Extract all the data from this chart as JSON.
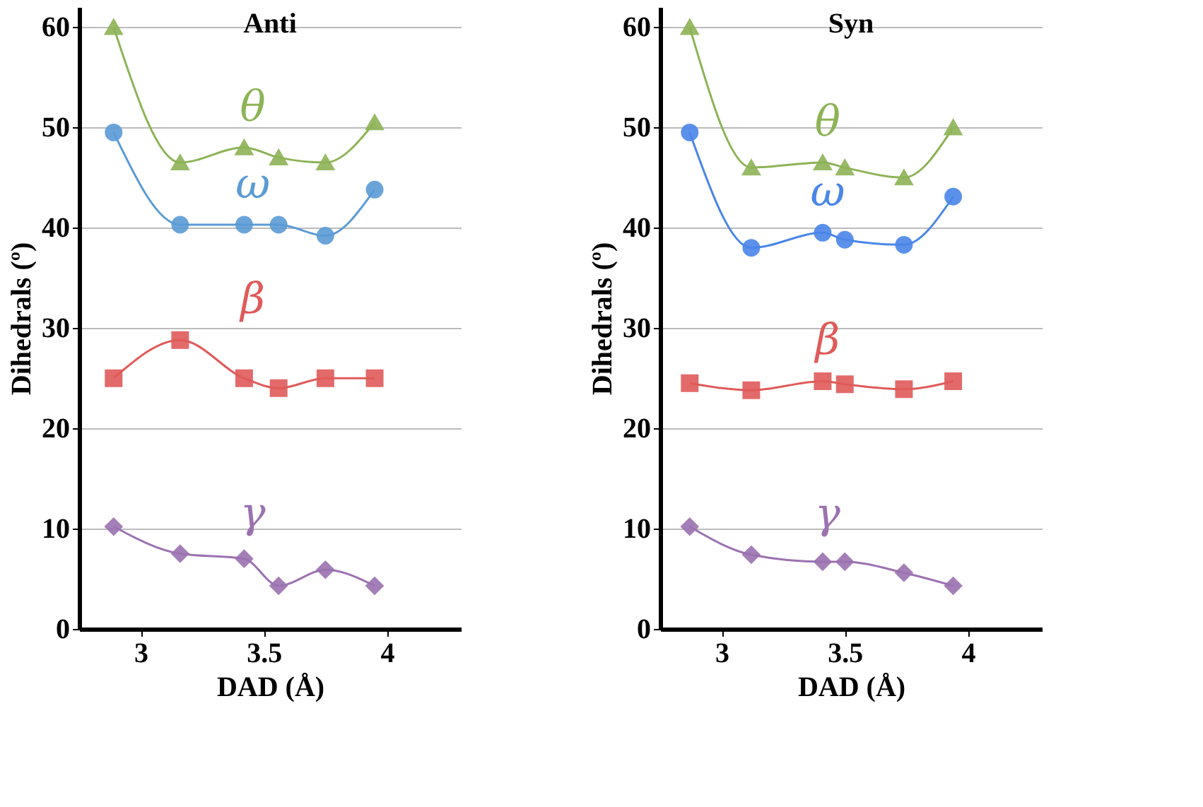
{
  "chart_data": [
    {
      "type": "line",
      "title": "Anti",
      "xlabel": "DAD (Å)",
      "ylabel": "Dihedrals (º)",
      "xlim": [
        2.75,
        4.3
      ],
      "xticks": [
        3,
        3.5,
        4
      ],
      "ylim": [
        0,
        62
      ],
      "yticks": [
        0,
        10,
        20,
        30,
        40,
        50,
        60
      ],
      "grid": "y",
      "series": [
        {
          "name": "θ",
          "color": "#8db356",
          "marker": "triangle",
          "x": [
            2.89,
            3.16,
            3.42,
            3.56,
            3.75,
            3.95
          ],
          "values": [
            60,
            46.5,
            48,
            47,
            46.5,
            50.5
          ]
        },
        {
          "name": "ω",
          "color": "#5b9bd5",
          "marker": "circle",
          "x": [
            2.89,
            3.16,
            3.42,
            3.56,
            3.75,
            3.95
          ],
          "values": [
            49.5,
            40.3,
            40.3,
            40.3,
            39.2,
            43.8
          ]
        },
        {
          "name": "β",
          "color": "#e05a5a",
          "marker": "square",
          "x": [
            2.89,
            3.16,
            3.42,
            3.56,
            3.75,
            3.95
          ],
          "values": [
            25,
            28.8,
            25,
            24,
            25,
            25
          ]
        },
        {
          "name": "γ",
          "color": "#9b72b0",
          "marker": "diamond",
          "x": [
            2.89,
            3.16,
            3.42,
            3.56,
            3.75,
            3.95
          ],
          "values": [
            10.2,
            7.5,
            7,
            4.3,
            5.9,
            4.3
          ]
        }
      ]
    },
    {
      "type": "line",
      "title": "Syn",
      "xlabel": "DAD (Å)",
      "ylabel": "Dihedrals (º)",
      "xlim": [
        2.75,
        4.3
      ],
      "xticks": [
        3,
        3.5,
        4
      ],
      "ylim": [
        0,
        62
      ],
      "yticks": [
        0,
        10,
        20,
        30,
        40,
        50,
        60
      ],
      "grid": "y",
      "series": [
        {
          "name": "θ",
          "color": "#8db356",
          "marker": "triangle",
          "x": [
            2.87,
            3.12,
            3.41,
            3.5,
            3.74,
            3.94
          ],
          "values": [
            60,
            46,
            46.5,
            46,
            45,
            50
          ]
        },
        {
          "name": "ω",
          "color": "#4a86e8",
          "marker": "circle",
          "x": [
            2.87,
            3.12,
            3.41,
            3.5,
            3.74,
            3.94
          ],
          "values": [
            49.5,
            38,
            39.5,
            38.8,
            38.3,
            43.1
          ]
        },
        {
          "name": "β",
          "color": "#e05a5a",
          "marker": "square",
          "x": [
            2.87,
            3.12,
            3.41,
            3.5,
            3.74,
            3.94
          ],
          "values": [
            24.5,
            23.8,
            24.7,
            24.4,
            23.9,
            24.7
          ]
        },
        {
          "name": "γ",
          "color": "#9b72b0",
          "marker": "diamond",
          "x": [
            2.87,
            3.12,
            3.41,
            3.5,
            3.74,
            3.94
          ],
          "values": [
            10.2,
            7.4,
            6.7,
            6.7,
            5.6,
            4.3
          ]
        }
      ]
    }
  ]
}
